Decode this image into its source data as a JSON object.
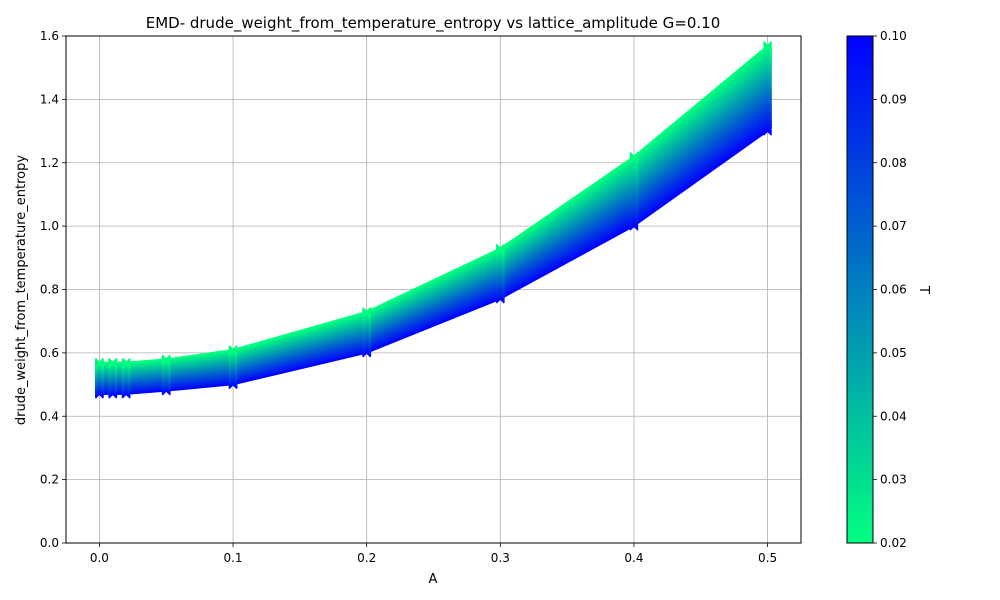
{
  "chart_data": {
    "type": "line",
    "title": "EMD- drude_weight_from_temperature_entropy vs lattice_amplitude G=0.10",
    "xlabel": "A",
    "ylabel": "drude_weight_from_temperature_entropy",
    "xlim": [
      -0.025,
      0.525
    ],
    "ylim": [
      0.0,
      1.6
    ],
    "xticks": [
      0.0,
      0.1,
      0.2,
      0.3,
      0.4,
      0.5
    ],
    "xtick_labels": [
      "0.0",
      "0.1",
      "0.2",
      "0.3",
      "0.4",
      "0.5"
    ],
    "yticks": [
      0.0,
      0.2,
      0.4,
      0.6,
      0.8,
      1.0,
      1.2,
      1.4,
      1.6
    ],
    "ytick_labels": [
      "0.0",
      "0.2",
      "0.4",
      "0.6",
      "0.8",
      "1.0",
      "1.2",
      "1.4",
      "1.6"
    ],
    "grid": true,
    "marker": "x",
    "x": [
      0.0,
      0.01,
      0.02,
      0.05,
      0.1,
      0.2,
      0.3,
      0.4,
      0.5
    ],
    "series_by_T": {
      "T_min": 0.02,
      "T_max": 0.1,
      "count": 60,
      "curve_at_T_max": [
        0.47,
        0.47,
        0.47,
        0.48,
        0.5,
        0.6,
        0.77,
        1.0,
        1.3
      ],
      "curve_at_T_min": [
        0.57,
        0.57,
        0.57,
        0.58,
        0.61,
        0.73,
        0.93,
        1.22,
        1.57
      ]
    },
    "colorbar": {
      "label": "T",
      "min": 0.02,
      "max": 0.1,
      "ticks": [
        0.02,
        0.03,
        0.04,
        0.05,
        0.06,
        0.07,
        0.08,
        0.09,
        0.1
      ],
      "tick_labels": [
        "0.02",
        "0.03",
        "0.04",
        "0.05",
        "0.06",
        "0.07",
        "0.08",
        "0.09",
        "0.10"
      ],
      "colormap": "winter",
      "color_low": "#00ff80",
      "color_high": "#0000ff"
    }
  }
}
